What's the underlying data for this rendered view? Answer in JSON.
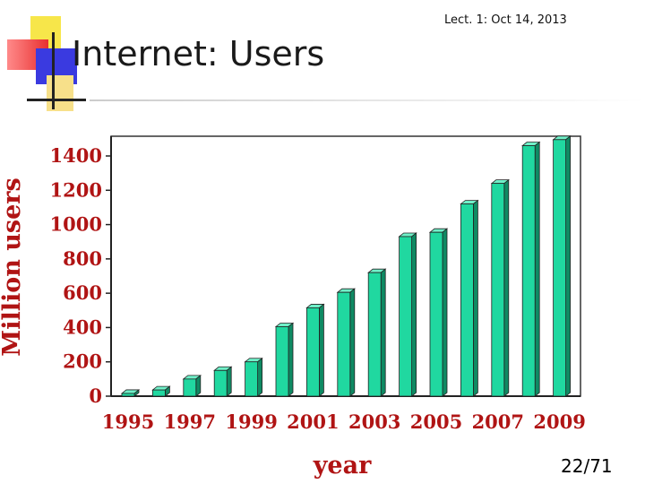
{
  "header": {
    "note": "Lect. 1: Oct 14, 2013"
  },
  "slide": {
    "title": "Internet: Users",
    "page_number": "22/71"
  },
  "colors": {
    "bar_front": "#20d8a0",
    "bar_side": "#0f8a63",
    "bar_top": "#6ff0c8",
    "axis_text": "#b01414"
  },
  "chart_data": {
    "type": "bar",
    "title": "",
    "xlabel": "year",
    "ylabel": "Million users",
    "ylim": [
      0,
      1500
    ],
    "yticks": [
      0,
      200,
      400,
      600,
      800,
      1000,
      1200,
      1400
    ],
    "xtick_labels": [
      "1995",
      "1997",
      "1999",
      "2001",
      "2003",
      "2005",
      "2007",
      "2009"
    ],
    "categories": [
      "1995",
      "1996",
      "1997",
      "1998",
      "1999",
      "2000",
      "2001",
      "2002",
      "2003",
      "2004",
      "2005",
      "2006",
      "2007",
      "2008",
      "2009"
    ],
    "values": [
      16,
      36,
      100,
      150,
      200,
      405,
      515,
      605,
      720,
      930,
      955,
      1120,
      1240,
      1460,
      1495
    ],
    "grid": false,
    "legend": "none"
  }
}
